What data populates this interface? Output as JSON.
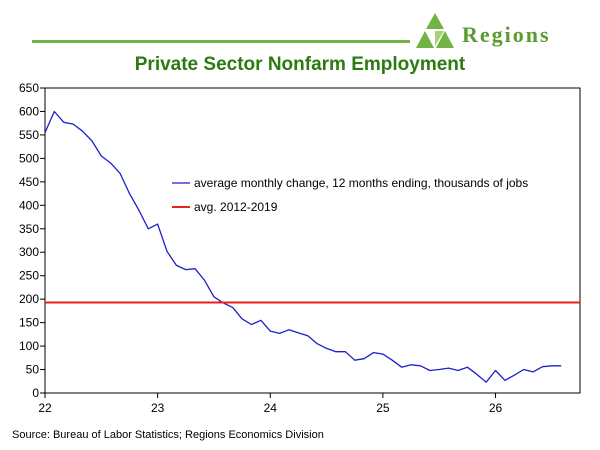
{
  "brand": {
    "name": "Regions",
    "accent_color": "#5b9b2f",
    "rule_color": "#73b244"
  },
  "source": "Source: Bureau of Labor Statistics; Regions Economics Division",
  "chart_data": {
    "type": "line",
    "title": "Private Sector Nonfarm Employment",
    "xlabel": "",
    "ylabel": "",
    "xlim": [
      22,
      26.75
    ],
    "ylim": [
      0,
      650
    ],
    "x_ticks": [
      22,
      23,
      24,
      25,
      26
    ],
    "x_tick_labels": [
      "22",
      "23",
      "24",
      "25",
      "26"
    ],
    "y_ticks": [
      0,
      50,
      100,
      150,
      200,
      250,
      300,
      350,
      400,
      450,
      500,
      550,
      600,
      650
    ],
    "grid": false,
    "legend_position": "upper-right-inside",
    "series": [
      {
        "name": "average monthly change, 12 months ending, thousands of jobs",
        "color": "#1f1fcc",
        "kind": "line",
        "x": [
          22.0,
          22.083,
          22.167,
          22.25,
          22.333,
          22.417,
          22.5,
          22.583,
          22.667,
          22.75,
          22.833,
          22.917,
          23.0,
          23.083,
          23.167,
          23.25,
          23.333,
          23.417,
          23.5,
          23.583,
          23.667,
          23.75,
          23.833,
          23.917,
          24.0,
          24.083,
          24.167,
          24.25,
          24.333,
          24.417,
          24.5,
          24.583,
          24.667,
          24.75,
          24.833,
          24.917,
          25.0,
          25.083,
          25.167,
          25.25,
          25.333,
          25.417,
          25.5,
          25.583,
          25.667,
          25.75,
          25.833,
          25.917,
          26.0,
          26.083,
          26.167,
          26.25,
          26.333,
          26.417,
          26.5,
          26.583
        ],
        "y": [
          555,
          600,
          577,
          573,
          558,
          537,
          505,
          490,
          468,
          425,
          390,
          350,
          360,
          302,
          272,
          263,
          265,
          240,
          205,
          192,
          182,
          158,
          146,
          155,
          132,
          127,
          135,
          128,
          122,
          105,
          95,
          88,
          88,
          70,
          73,
          86,
          83,
          70,
          55,
          60,
          58,
          48,
          50,
          53,
          48,
          55,
          40,
          23,
          48,
          27,
          38,
          50,
          45,
          56,
          58,
          58
        ]
      },
      {
        "name": "avg. 2012-2019",
        "color": "#e8221c",
        "kind": "hline",
        "y": 193
      }
    ]
  }
}
